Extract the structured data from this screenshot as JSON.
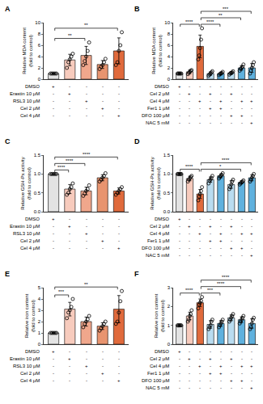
{
  "chart_data": [
    {
      "type": "bar",
      "panel": "A",
      "y_label": "Relative MDA content\n(fold to control)",
      "ylim": [
        0,
        10
      ],
      "yticks": [
        0,
        2,
        4,
        6,
        8,
        10
      ],
      "tick_labels": "y",
      "marker": "circle-open",
      "conditions": [
        "DMSO",
        "Erastin 10 μM",
        "RSL3 10 μM",
        "Cel 2 μM",
        "Cel 4 μM"
      ],
      "treatment_table": [
        [
          "+",
          "-",
          "-",
          "-",
          "-"
        ],
        [
          "-",
          "+",
          "-",
          "-",
          "-"
        ],
        [
          "-",
          "-",
          "+",
          "-",
          "-"
        ],
        [
          "-",
          "-",
          "-",
          "+",
          "-"
        ],
        [
          "-",
          "-",
          "-",
          "-",
          "+"
        ]
      ],
      "values": [
        1.0,
        3.4,
        4.2,
        2.6,
        5.0
      ],
      "errors": [
        0.05,
        1.0,
        1.6,
        0.7,
        2.3
      ],
      "points": [
        [
          1,
          1,
          1,
          1,
          1
        ],
        [
          2.0,
          3.0,
          3.5,
          4.0,
          4.5
        ],
        [
          2.5,
          3.2,
          4.0,
          5.0,
          6.5
        ],
        [
          1.8,
          2.2,
          2.5,
          3.0,
          3.6
        ],
        [
          2.5,
          3.0,
          5.0,
          6.0,
          8.3
        ]
      ],
      "colors": [
        "#e3e3e3",
        "#f7cbbd",
        "#f0a78c",
        "#e8946f",
        "#e06a3c"
      ],
      "comparisons": [
        {
          "from": 0,
          "to": 2,
          "label": "**"
        },
        {
          "from": 0,
          "to": 4,
          "label": "**"
        }
      ]
    },
    {
      "type": "bar",
      "panel": "B",
      "y_label": "Relative MDA content\n(fold to control)",
      "ylim": [
        0,
        10
      ],
      "yticks": [
        0,
        2,
        4,
        6,
        8,
        10
      ],
      "tick_labels": "y",
      "marker": "circle-open",
      "conditions": [
        "DMSO",
        "Cel 2 μM",
        "Cel 4 μM",
        "Fer1 1 μM",
        "DFO 100 μM",
        "NAC 5 mM"
      ],
      "treatment_table": [
        [
          "+",
          "-",
          "-",
          "-",
          "-",
          "-",
          "-",
          "-"
        ],
        [
          "-",
          "+",
          "-",
          "+",
          "-",
          "+",
          "-",
          "-"
        ],
        [
          "-",
          "-",
          "+",
          "-",
          "+",
          "-",
          "+",
          "+"
        ],
        [
          "-",
          "-",
          "-",
          "+",
          "+",
          "-",
          "-",
          "-"
        ],
        [
          "-",
          "-",
          "-",
          "-",
          "-",
          "+",
          "+",
          "-"
        ],
        [
          "-",
          "-",
          "-",
          "-",
          "-",
          "-",
          "-",
          "+"
        ]
      ],
      "values": [
        1.0,
        1.3,
        5.8,
        1.0,
        1.0,
        1.1,
        2.0,
        2.0
      ],
      "errors": [
        0.05,
        0.3,
        2.0,
        0.3,
        0.25,
        0.25,
        0.4,
        0.8
      ],
      "points": [
        [
          1,
          1,
          1,
          1,
          1
        ],
        [
          0.9,
          1.1,
          1.3,
          1.5,
          1.6
        ],
        [
          3.5,
          4.2,
          5.5,
          7.0,
          9.0
        ],
        [
          0.6,
          0.8,
          1.0,
          1.2,
          1.4
        ],
        [
          0.7,
          0.9,
          1.0,
          1.1,
          1.3
        ],
        [
          0.8,
          1.0,
          1.1,
          1.2,
          1.4
        ],
        [
          1.5,
          1.8,
          2.0,
          2.2,
          2.6
        ],
        [
          1.0,
          1.5,
          2.0,
          2.5,
          3.0
        ]
      ],
      "colors": [
        "#e3e3e3",
        "#f7cbbd",
        "#e06a3c",
        "#b9dcf0",
        "#5fb1de",
        "#b9dcf0",
        "#5fb1de",
        "#5fb1de"
      ],
      "comparisons": [
        {
          "from": 0,
          "to": 2,
          "label": "****"
        },
        {
          "from": 2,
          "to": 4,
          "label": "****"
        },
        {
          "from": 2,
          "to": 6,
          "label": "**"
        },
        {
          "from": 2,
          "to": 7,
          "label": "***"
        }
      ]
    },
    {
      "type": "bar",
      "panel": "C",
      "y_label": "Relative GSH-Px activity\n(fold to control)",
      "ylim": [
        0,
        1.5
      ],
      "yticks": [
        {
          "value": 0,
          "label": "0.0"
        },
        0.5,
        {
          "value": 1,
          "label": "1.0"
        },
        1.5
      ],
      "tick_labels": "y",
      "marker": "circle-open",
      "conditions": [
        "DMSO",
        "Erastin 10 μM",
        "RSL3 10 μM",
        "Cel 2 μM",
        "Cel 4 μM"
      ],
      "treatment_table": [
        [
          "+",
          "-",
          "-",
          "-",
          "-"
        ],
        [
          "-",
          "+",
          "-",
          "-",
          "-"
        ],
        [
          "-",
          "-",
          "+",
          "-",
          "-"
        ],
        [
          "-",
          "-",
          "-",
          "+",
          "-"
        ],
        [
          "-",
          "-",
          "-",
          "-",
          "+"
        ]
      ],
      "values": [
        1.0,
        0.6,
        0.55,
        0.9,
        0.55
      ],
      "errors": [
        0.0,
        0.12,
        0.1,
        0.08,
        0.08
      ],
      "points": [
        [
          1,
          1,
          1,
          1,
          1
        ],
        [
          0.45,
          0.5,
          0.6,
          0.65,
          0.75
        ],
        [
          0.42,
          0.48,
          0.55,
          0.6,
          0.7
        ],
        [
          0.8,
          0.85,
          0.9,
          0.95,
          1.02
        ],
        [
          0.45,
          0.5,
          0.55,
          0.6,
          0.65
        ]
      ],
      "colors": [
        "#e3e3e3",
        "#f7cbbd",
        "#f0a78c",
        "#e8946f",
        "#e06a3c"
      ],
      "comparisons": [
        {
          "from": 0,
          "to": 1,
          "label": "****"
        },
        {
          "from": 0,
          "to": 2,
          "label": "****"
        },
        {
          "from": 0,
          "to": 4,
          "label": "****"
        }
      ]
    },
    {
      "type": "bar",
      "panel": "D",
      "y_label": "Relative GSH-Px activity\n(fold to control)",
      "ylim": [
        0,
        1.5
      ],
      "yticks": [
        {
          "value": 0,
          "label": "0.0"
        },
        0.5,
        {
          "value": 1,
          "label": "1.0"
        },
        1.5
      ],
      "tick_labels": "y",
      "marker": "circle-open",
      "conditions": [
        "DMSO",
        "Cel 2 μM",
        "Cel 4 μM",
        "Fer1 1 μM",
        "DFO 100 μM",
        "NAC 5 mM"
      ],
      "treatment_table": [
        [
          "+",
          "-",
          "-",
          "-",
          "-",
          "-",
          "-",
          "-"
        ],
        [
          "-",
          "+",
          "-",
          "+",
          "-",
          "+",
          "-",
          "-"
        ],
        [
          "-",
          "-",
          "+",
          "-",
          "+",
          "-",
          "+",
          "+"
        ],
        [
          "-",
          "-",
          "-",
          "+",
          "+",
          "-",
          "-",
          "-"
        ],
        [
          "-",
          "-",
          "-",
          "-",
          "-",
          "+",
          "+",
          "-"
        ],
        [
          "-",
          "-",
          "-",
          "-",
          "-",
          "-",
          "-",
          "+"
        ]
      ],
      "values": [
        1.0,
        0.88,
        0.47,
        0.85,
        0.95,
        0.72,
        0.78,
        0.9
      ],
      "errors": [
        0.02,
        0.06,
        0.12,
        0.07,
        0.05,
        0.1,
        0.04,
        0.08
      ],
      "points": [
        [
          1,
          1,
          1,
          1,
          1
        ],
        [
          0.8,
          0.85,
          0.88,
          0.92,
          0.95
        ],
        [
          0.3,
          0.4,
          0.47,
          0.55,
          0.65
        ],
        [
          0.75,
          0.82,
          0.85,
          0.9,
          0.95
        ],
        [
          0.88,
          0.92,
          0.95,
          0.98,
          1.02
        ],
        [
          0.6,
          0.65,
          0.72,
          0.8,
          0.85
        ],
        [
          0.72,
          0.75,
          0.78,
          0.8,
          0.83
        ],
        [
          0.8,
          0.85,
          0.9,
          0.95,
          1.0
        ]
      ],
      "colors": [
        "#e3e3e3",
        "#f7cbbd",
        "#e06a3c",
        "#b9dcf0",
        "#5fb1de",
        "#b9dcf0",
        "#5fb1de",
        "#5fb1de"
      ],
      "comparisons": [
        {
          "from": 0,
          "to": 2,
          "label": "****"
        },
        {
          "from": 2,
          "to": 6,
          "label": "*"
        },
        {
          "from": 2,
          "to": 7,
          "label": "****"
        }
      ]
    },
    {
      "type": "bar",
      "panel": "E",
      "y_label": "Relative iron content\n(fold to control)",
      "ylim": [
        0,
        5
      ],
      "yticks": [
        0,
        1,
        2,
        3,
        4,
        5
      ],
      "tick_labels": "y",
      "marker": "circle-open",
      "conditions": [
        "DMSO",
        "Erastin 10 μM",
        "RSL3 10 μM",
        "Cel 2 μM",
        "Cel 4 μM"
      ],
      "treatment_table": [
        [
          "+",
          "-",
          "-",
          "-",
          "-"
        ],
        [
          "-",
          "+",
          "-",
          "-",
          "-"
        ],
        [
          "-",
          "-",
          "+",
          "-",
          "-"
        ],
        [
          "-",
          "-",
          "-",
          "+",
          "-"
        ],
        [
          "-",
          "-",
          "-",
          "-",
          "+"
        ]
      ],
      "values": [
        1.0,
        3.1,
        2.0,
        1.6,
        3.1
      ],
      "errors": [
        0.02,
        0.6,
        0.4,
        0.3,
        1.2
      ],
      "points": [
        [
          1,
          1,
          1,
          1,
          1
        ],
        [
          2.3,
          2.8,
          3.0,
          3.3,
          4.0
        ],
        [
          1.5,
          1.8,
          2.0,
          2.2,
          2.5
        ],
        [
          1.2,
          1.4,
          1.6,
          1.8,
          2.0
        ],
        [
          1.8,
          2.0,
          2.8,
          3.8,
          4.7
        ]
      ],
      "colors": [
        "#e3e3e3",
        "#f7cbbd",
        "#f0a78c",
        "#e8946f",
        "#e06a3c"
      ],
      "comparisons": [
        {
          "from": 0,
          "to": 1,
          "label": "***"
        },
        {
          "from": 0,
          "to": 4,
          "label": "**"
        }
      ]
    },
    {
      "type": "bar",
      "panel": "F",
      "y_label": "Relative iron content\n(fold to control)",
      "ylim": [
        0,
        3
      ],
      "yticks": [
        0,
        1,
        2,
        3
      ],
      "tick_labels": "y",
      "marker": "circle-open",
      "conditions": [
        "DMSO",
        "Cel 2 μM",
        "Cel 4 μM",
        "Fer1 1 μM",
        "DFO 100 μM",
        "NAC 5 mM"
      ],
      "treatment_table": [
        [
          "+",
          "-",
          "-",
          "-",
          "-",
          "-",
          "-",
          "-"
        ],
        [
          "-",
          "+",
          "-",
          "+",
          "-",
          "+",
          "-",
          "-"
        ],
        [
          "-",
          "-",
          "+",
          "-",
          "+",
          "-",
          "+",
          "+"
        ],
        [
          "-",
          "-",
          "-",
          "+",
          "+",
          "-",
          "-",
          "-"
        ],
        [
          "-",
          "-",
          "-",
          "-",
          "-",
          "+",
          "+",
          "-"
        ],
        [
          "-",
          "-",
          "-",
          "-",
          "-",
          "-",
          "-",
          "+"
        ]
      ],
      "values": [
        1.0,
        1.5,
        2.2,
        1.05,
        1.1,
        1.4,
        1.3,
        1.1
      ],
      "errors": [
        0.02,
        0.2,
        0.2,
        0.2,
        0.15,
        0.15,
        0.15,
        0.25
      ],
      "points": [
        [
          1,
          1,
          1,
          1,
          1
        ],
        [
          1.2,
          1.3,
          1.5,
          1.6,
          1.8
        ],
        [
          1.9,
          2.1,
          2.2,
          2.3,
          2.5
        ],
        [
          0.8,
          0.9,
          1.0,
          1.2,
          1.3
        ],
        [
          0.9,
          1.0,
          1.1,
          1.2,
          1.3
        ],
        [
          1.2,
          1.3,
          1.4,
          1.5,
          1.6
        ],
        [
          1.1,
          1.2,
          1.3,
          1.4,
          1.5
        ],
        [
          0.8,
          0.9,
          1.1,
          1.3,
          1.4
        ]
      ],
      "colors": [
        "#e3e3e3",
        "#f7cbbd",
        "#e06a3c",
        "#b9dcf0",
        "#5fb1de",
        "#b9dcf0",
        "#5fb1de",
        "#5fb1de"
      ],
      "comparisons": [
        {
          "from": 0,
          "to": 2,
          "label": "****"
        },
        {
          "from": 2,
          "to": 4,
          "label": "***"
        },
        {
          "from": 2,
          "to": 6,
          "label": "****"
        },
        {
          "from": 2,
          "to": 7,
          "label": "****"
        }
      ]
    }
  ]
}
